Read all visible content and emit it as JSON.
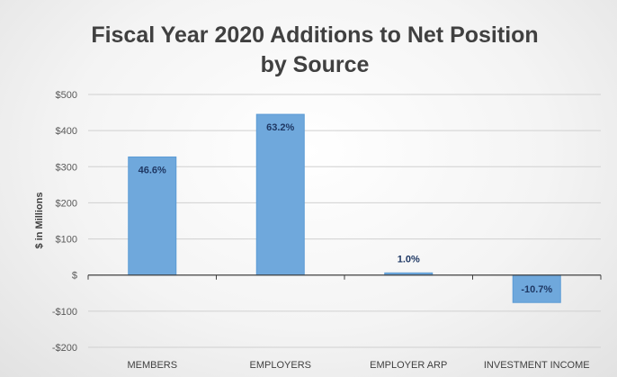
{
  "chart_data": {
    "type": "bar",
    "title": "Fiscal Year 2020 Additions to Net Position",
    "subtitle": "by Source",
    "xlabel": "",
    "ylabel": "$ in Millions",
    "categories": [
      "MEMBERS",
      "EMPLOYERS",
      "EMPLOYER ARP",
      "INVESTMENT INCOME"
    ],
    "values": [
      327,
      445,
      6,
      -76
    ],
    "data_labels": [
      "46.6%",
      "63.2%",
      "1.0%",
      "-10.7%"
    ],
    "ylim": [
      -200,
      500
    ],
    "yticks": [
      500,
      400,
      300,
      200,
      100,
      0,
      -100,
      -200
    ],
    "ytick_labels": [
      "$500",
      "$400",
      "$300",
      "$200",
      "$100",
      "$",
      "-$100",
      "-$200"
    ],
    "grid": true,
    "legend": "none",
    "colors": {
      "bar": "#6fa8dc",
      "bar_edge": "#5b9bd5",
      "grid": "#d0d0d0",
      "axis": "#404040",
      "data_label": "#1f3864"
    }
  }
}
